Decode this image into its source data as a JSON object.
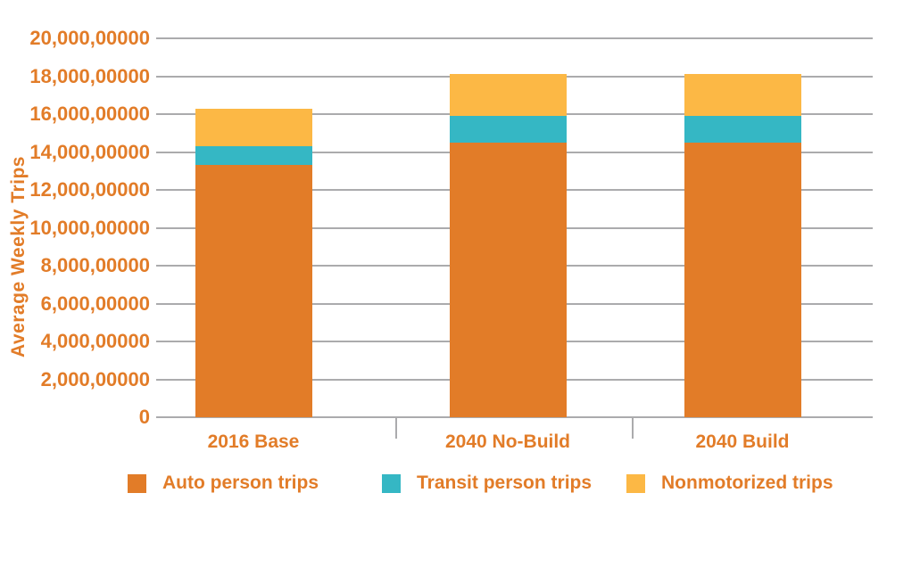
{
  "chart_data": {
    "type": "bar",
    "stacked": true,
    "title": "",
    "xlabel": "",
    "ylabel": "Average Weekly Trips",
    "categories": [
      "2016 Base",
      "2040 No-Build",
      "2040 Build"
    ],
    "series": [
      {
        "name": "Auto person trips",
        "color": "#E27C28",
        "values": [
          1330000000,
          1450000000,
          1450000000
        ]
      },
      {
        "name": "Transit person trips",
        "color": "#35B7C4",
        "values": [
          100000000,
          140000000,
          140000000
        ]
      },
      {
        "name": "Nonmotorized trips",
        "color": "#FCB845",
        "values": [
          200000000,
          220000000,
          220000000
        ]
      }
    ],
    "ylim": [
      0,
      2000000000
    ],
    "ytick_step": 200000000,
    "ytick_labels": [
      "0",
      "2,000,00000",
      "4,000,00000",
      "6,000,00000",
      "8,000,00000",
      "10,000,00000",
      "12,000,00000",
      "14,000,00000",
      "16,000,00000",
      "18,000,00000",
      "20,000,00000"
    ],
    "grid": true,
    "legend_position": "bottom"
  },
  "colors": {
    "accent_text": "#E27C28",
    "gridline": "#ABABAD",
    "background": "#FFFFFF"
  }
}
